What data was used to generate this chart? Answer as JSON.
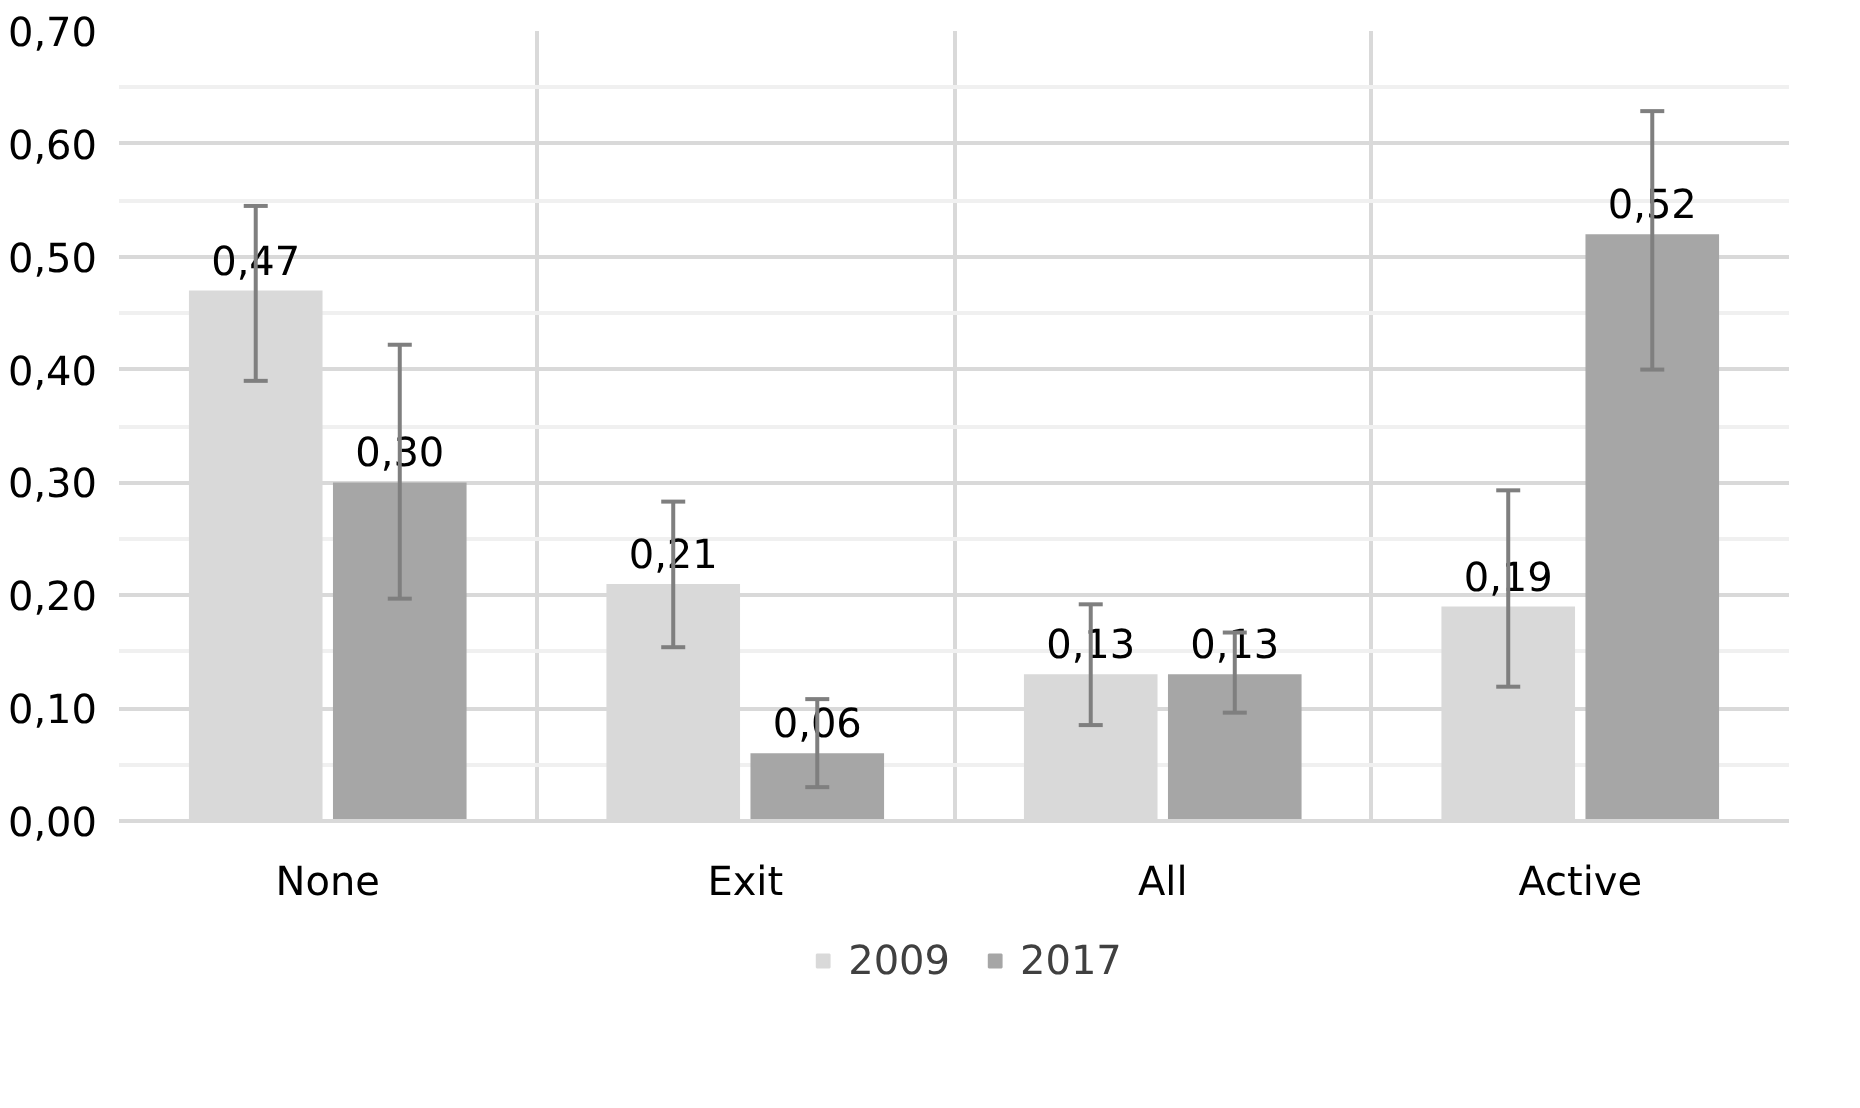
{
  "chart_data": {
    "type": "bar",
    "categories": [
      "None",
      "Exit",
      "All",
      "Active"
    ],
    "series": [
      {
        "name": "2009",
        "color": "#d9d9d9",
        "values": [
          0.47,
          0.21,
          0.13,
          0.19
        ],
        "value_labels": [
          "0,47",
          "0,21",
          "0,13",
          "0,19"
        ],
        "errors": [
          [
            0.39,
            0.545
          ],
          [
            0.154,
            0.283
          ],
          [
            0.085,
            0.192
          ],
          [
            0.119,
            0.293
          ]
        ]
      },
      {
        "name": "2017",
        "color": "#a6a6a6",
        "values": [
          0.3,
          0.06,
          0.13,
          0.52
        ],
        "value_labels": [
          "0,30",
          "0,06",
          "0,13",
          "0,52"
        ],
        "errors": [
          [
            0.197,
            0.422
          ],
          [
            0.03,
            0.108
          ],
          [
            0.096,
            0.167
          ],
          [
            0.4,
            0.629
          ]
        ]
      }
    ],
    "ylim": [
      0,
      0.7
    ],
    "yticks": [
      {
        "value": 0,
        "label": "0,00"
      },
      {
        "value": 0.1,
        "label": "0,10"
      },
      {
        "value": 0.2,
        "label": "0,20"
      },
      {
        "value": 0.3,
        "label": "0,30"
      },
      {
        "value": 0.4,
        "label": "0,40"
      },
      {
        "value": 0.5,
        "label": "0,50"
      },
      {
        "value": 0.6,
        "label": "0,60"
      },
      {
        "value": 0.7,
        "label": "0,70"
      }
    ],
    "grid": true,
    "legend": "bottom"
  }
}
